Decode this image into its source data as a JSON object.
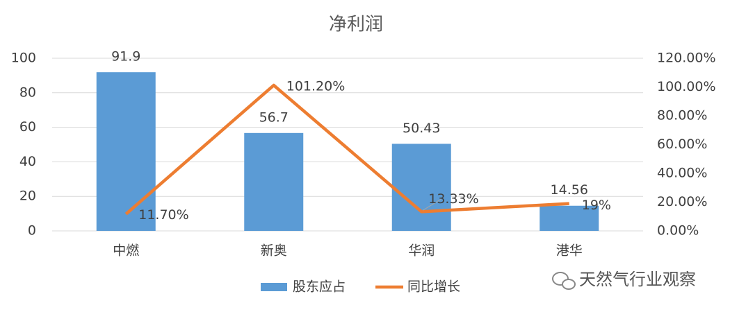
{
  "chart_data": {
    "type": "bar",
    "title": "净利润",
    "categories": [
      "中燃",
      "新奥",
      "华润",
      "港华"
    ],
    "series": [
      {
        "name": "股东应占",
        "type": "bar",
        "color": "#5b9bd5",
        "values": [
          91.9,
          56.7,
          50.43,
          14.56
        ]
      },
      {
        "name": "同比增长",
        "type": "line",
        "axis": "y2",
        "color": "#ed7d31",
        "values": [
          11.7,
          101.2,
          13.33,
          19
        ],
        "value_labels": [
          "11.70%",
          "101.20%",
          "13.33%",
          "19%"
        ]
      }
    ],
    "ylim": [
      0,
      100
    ],
    "yticks": [
      0,
      20,
      40,
      60,
      80,
      100
    ],
    "y2lim": [
      0,
      120
    ],
    "y2ticks": [
      {
        "value": 0,
        "label": "0.00%"
      },
      {
        "value": 20,
        "label": "20.00%"
      },
      {
        "value": 40,
        "label": "40.00%"
      },
      {
        "value": 60,
        "label": "60.00%"
      },
      {
        "value": 80,
        "label": "80.00%"
      },
      {
        "value": 100,
        "label": "100.00%"
      },
      {
        "value": 120,
        "label": "120.00%"
      }
    ],
    "grid": true,
    "legend": "bottom",
    "watermark": "天然气行业观察"
  }
}
